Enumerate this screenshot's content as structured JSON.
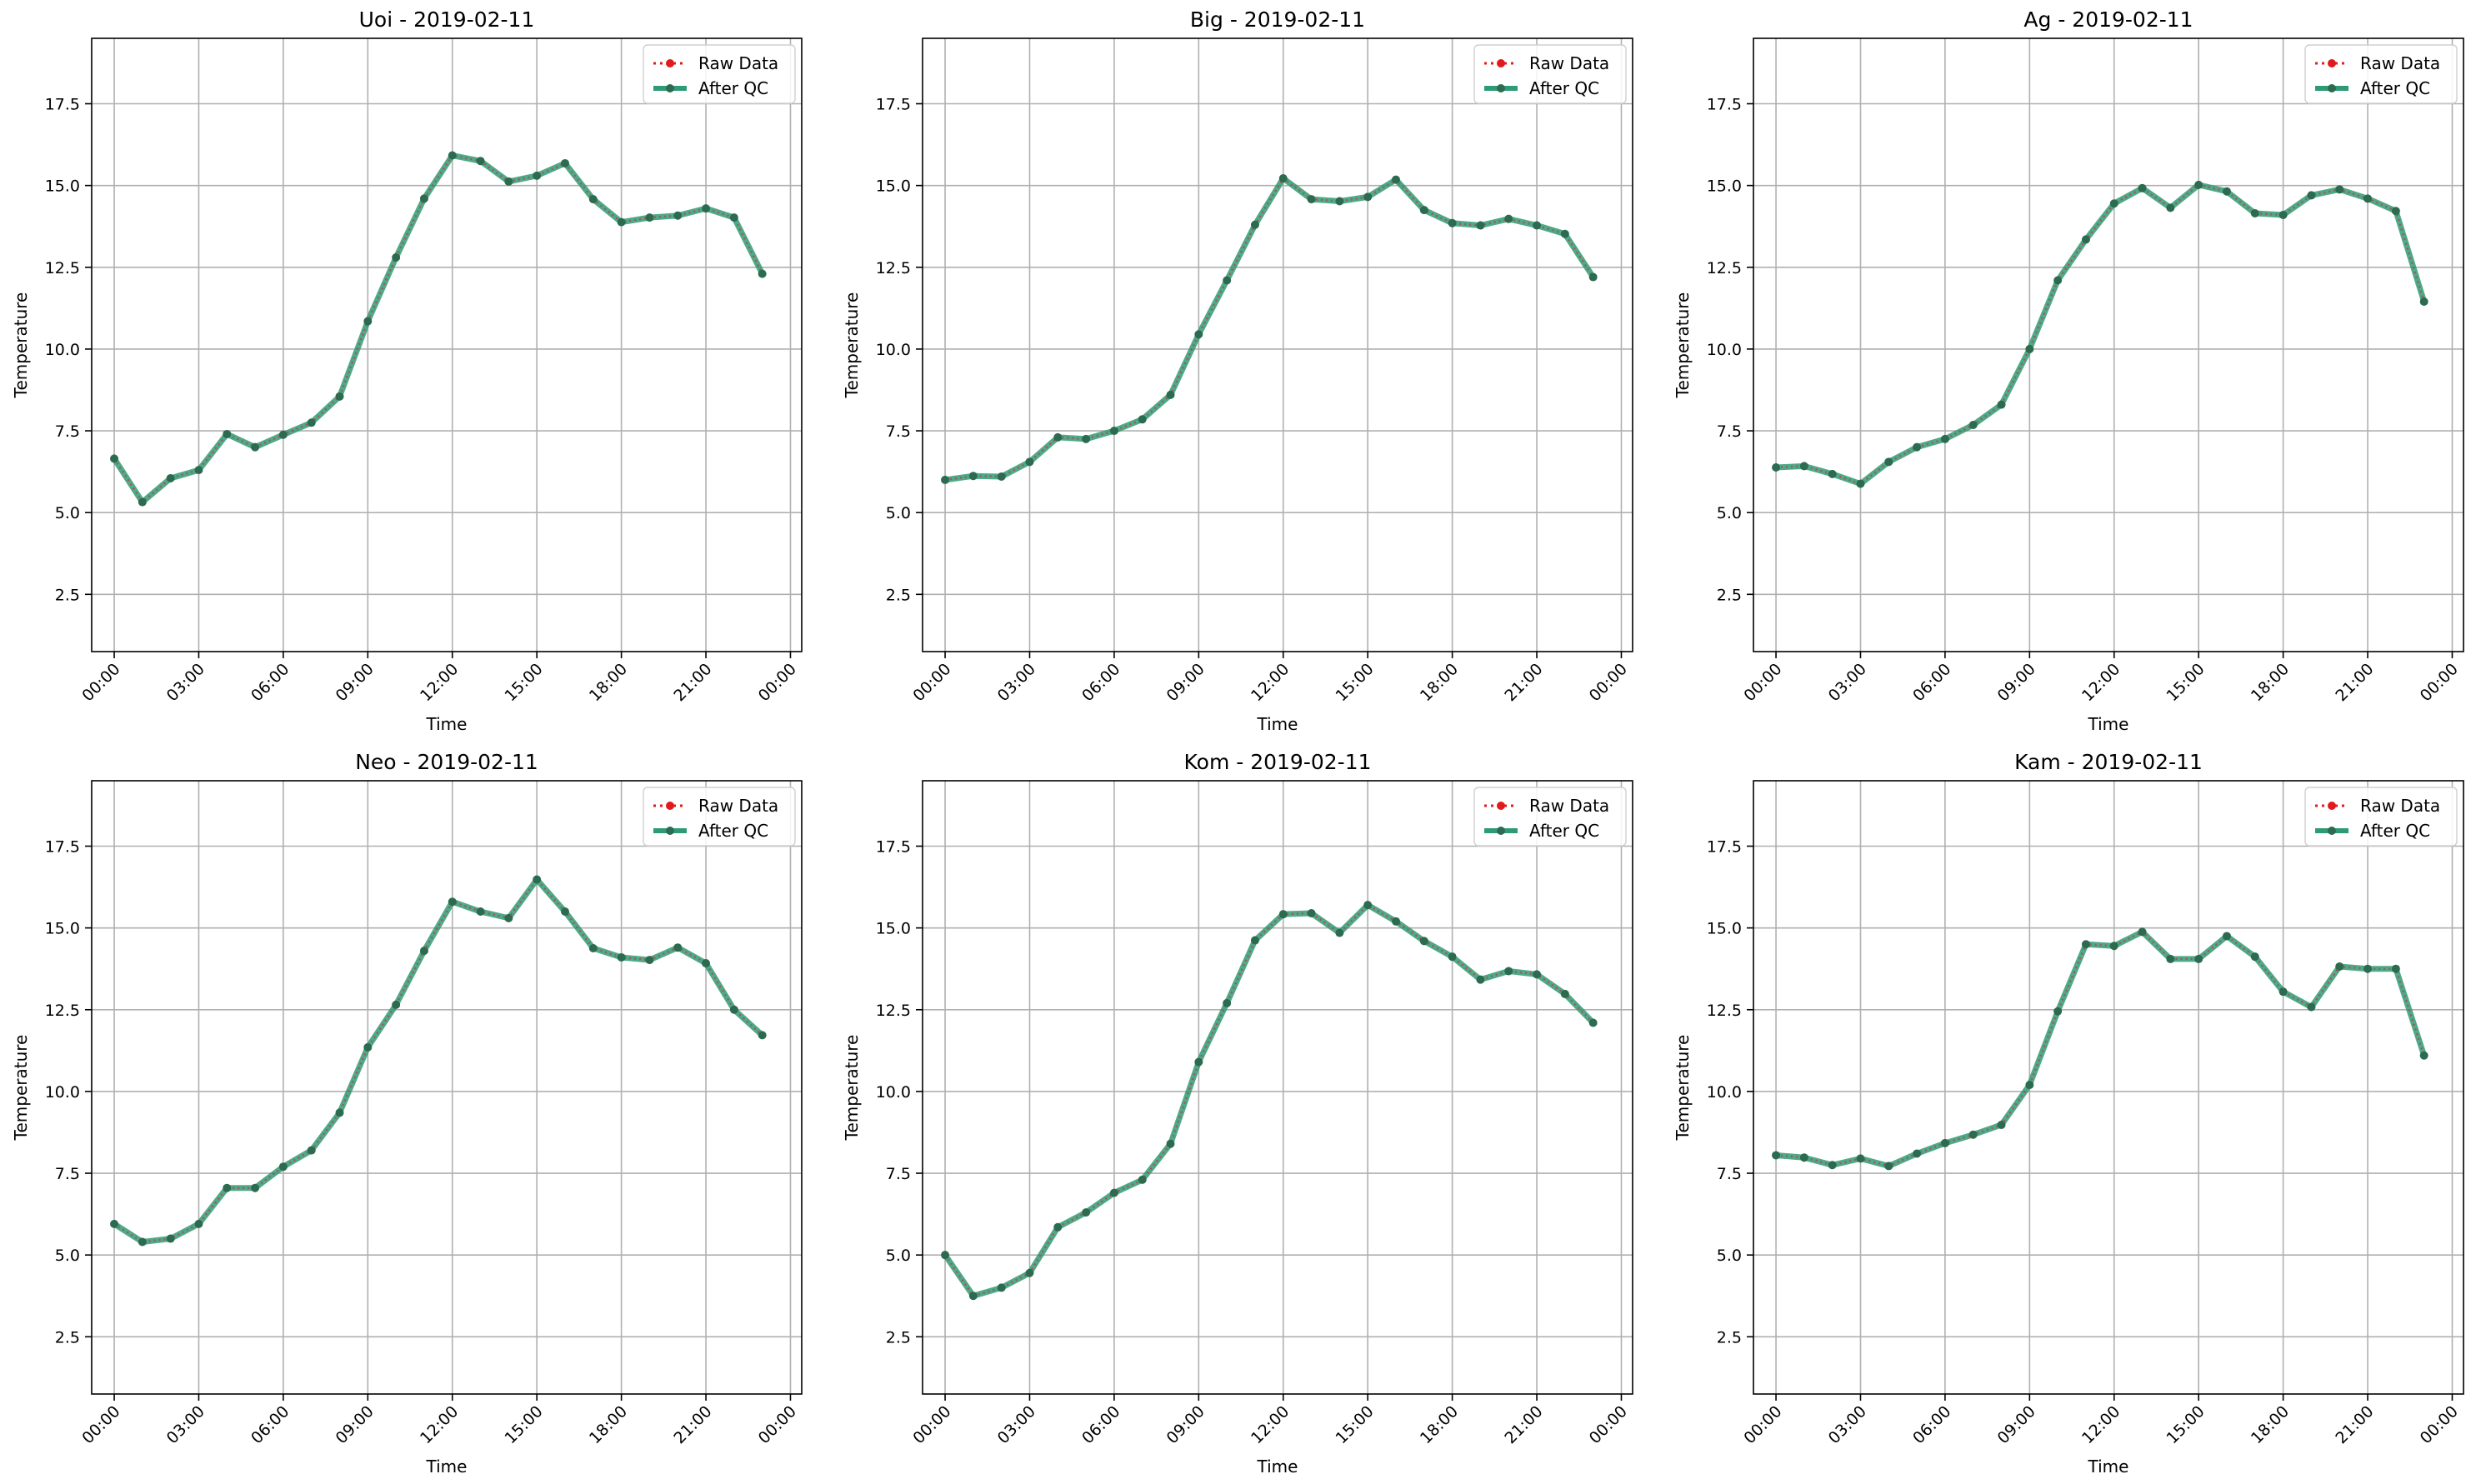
{
  "chart_data": [
    {
      "type": "line",
      "title": "Uoi - 2019-02-11",
      "xlabel": "Time",
      "ylabel": "Temperature",
      "x": [
        "00:00",
        "01:00",
        "02:00",
        "03:00",
        "04:00",
        "05:00",
        "06:00",
        "07:00",
        "08:00",
        "09:00",
        "10:00",
        "11:00",
        "12:00",
        "13:00",
        "14:00",
        "15:00",
        "16:00",
        "17:00",
        "18:00",
        "19:00",
        "20:00",
        "21:00",
        "22:00",
        "23:00"
      ],
      "series": [
        {
          "name": "Raw Data",
          "values": [
            6.65,
            5.32,
            6.05,
            6.3,
            7.4,
            7.0,
            7.38,
            7.75,
            8.55,
            10.85,
            12.8,
            14.6,
            15.92,
            15.75,
            15.12,
            15.3,
            15.68,
            14.58,
            13.88,
            14.02,
            14.08,
            14.3,
            14.02,
            12.3
          ]
        },
        {
          "name": "After QC",
          "values": [
            6.65,
            5.32,
            6.05,
            6.3,
            7.4,
            7.0,
            7.38,
            7.75,
            8.55,
            10.85,
            12.8,
            14.6,
            15.92,
            15.75,
            15.12,
            15.3,
            15.68,
            14.58,
            13.88,
            14.02,
            14.08,
            14.3,
            14.02,
            12.3
          ]
        }
      ],
      "ylim": [
        0.75,
        19.5
      ],
      "yticks": [
        2.5,
        5.0,
        7.5,
        10.0,
        12.5,
        15.0,
        17.5
      ],
      "xticks": [
        "00:00",
        "03:00",
        "06:00",
        "09:00",
        "12:00",
        "15:00",
        "18:00",
        "21:00",
        "00:00"
      ],
      "grid": true,
      "legend": "top-right"
    },
    {
      "type": "line",
      "title": "Big - 2019-02-11",
      "xlabel": "Time",
      "ylabel": "Temperature",
      "x": [
        "00:00",
        "01:00",
        "02:00",
        "03:00",
        "04:00",
        "05:00",
        "06:00",
        "07:00",
        "08:00",
        "09:00",
        "10:00",
        "11:00",
        "12:00",
        "13:00",
        "14:00",
        "15:00",
        "16:00",
        "17:00",
        "18:00",
        "19:00",
        "20:00",
        "21:00",
        "22:00",
        "23:00"
      ],
      "series": [
        {
          "name": "Raw Data",
          "values": [
            6.0,
            6.12,
            6.1,
            6.55,
            7.3,
            7.25,
            7.5,
            7.85,
            8.6,
            10.45,
            12.1,
            13.8,
            15.22,
            14.58,
            14.52,
            14.65,
            15.18,
            14.25,
            13.85,
            13.78,
            13.98,
            13.78,
            13.52,
            12.2
          ]
        },
        {
          "name": "After QC",
          "values": [
            6.0,
            6.12,
            6.1,
            6.55,
            7.3,
            7.25,
            7.5,
            7.85,
            8.6,
            10.45,
            12.1,
            13.8,
            15.22,
            14.58,
            14.52,
            14.65,
            15.18,
            14.25,
            13.85,
            13.78,
            13.98,
            13.78,
            13.52,
            12.2
          ]
        }
      ],
      "ylim": [
        0.75,
        19.5
      ],
      "yticks": [
        2.5,
        5.0,
        7.5,
        10.0,
        12.5,
        15.0,
        17.5
      ],
      "xticks": [
        "00:00",
        "03:00",
        "06:00",
        "09:00",
        "12:00",
        "15:00",
        "18:00",
        "21:00",
        "00:00"
      ],
      "grid": true,
      "legend": "top-right"
    },
    {
      "type": "line",
      "title": "Ag - 2019-02-11",
      "xlabel": "Time",
      "ylabel": "Temperature",
      "x": [
        "00:00",
        "01:00",
        "02:00",
        "03:00",
        "04:00",
        "05:00",
        "06:00",
        "07:00",
        "08:00",
        "09:00",
        "10:00",
        "11:00",
        "12:00",
        "13:00",
        "14:00",
        "15:00",
        "16:00",
        "17:00",
        "18:00",
        "19:00",
        "20:00",
        "21:00",
        "22:00",
        "23:00"
      ],
      "series": [
        {
          "name": "Raw Data",
          "values": [
            6.38,
            6.42,
            6.18,
            5.88,
            6.55,
            7.0,
            7.25,
            7.68,
            8.3,
            10.0,
            12.1,
            13.35,
            14.45,
            14.92,
            14.32,
            15.02,
            14.82,
            14.15,
            14.1,
            14.7,
            14.88,
            14.6,
            14.22,
            11.45
          ]
        },
        {
          "name": "After QC",
          "values": [
            6.38,
            6.42,
            6.18,
            5.88,
            6.55,
            7.0,
            7.25,
            7.68,
            8.3,
            10.0,
            12.1,
            13.35,
            14.45,
            14.92,
            14.32,
            15.02,
            14.82,
            14.15,
            14.1,
            14.7,
            14.88,
            14.6,
            14.22,
            11.45
          ]
        }
      ],
      "ylim": [
        0.75,
        19.5
      ],
      "yticks": [
        2.5,
        5.0,
        7.5,
        10.0,
        12.5,
        15.0,
        17.5
      ],
      "xticks": [
        "00:00",
        "03:00",
        "06:00",
        "09:00",
        "12:00",
        "15:00",
        "18:00",
        "21:00",
        "00:00"
      ],
      "grid": true,
      "legend": "top-right"
    },
    {
      "type": "line",
      "title": "Neo - 2019-02-11",
      "xlabel": "Time",
      "ylabel": "Temperature",
      "x": [
        "00:00",
        "01:00",
        "02:00",
        "03:00",
        "04:00",
        "05:00",
        "06:00",
        "07:00",
        "08:00",
        "09:00",
        "10:00",
        "11:00",
        "12:00",
        "13:00",
        "14:00",
        "15:00",
        "16:00",
        "17:00",
        "18:00",
        "19:00",
        "20:00",
        "21:00",
        "22:00",
        "23:00"
      ],
      "series": [
        {
          "name": "Raw Data",
          "values": [
            5.95,
            5.4,
            5.5,
            5.95,
            7.05,
            7.05,
            7.7,
            8.2,
            9.35,
            11.35,
            12.65,
            14.3,
            15.8,
            15.5,
            15.3,
            16.48,
            15.5,
            14.38,
            14.1,
            14.02,
            14.4,
            13.92,
            12.5,
            11.72
          ]
        },
        {
          "name": "After QC",
          "values": [
            5.95,
            5.4,
            5.5,
            5.95,
            7.05,
            7.05,
            7.7,
            8.2,
            9.35,
            11.35,
            12.65,
            14.3,
            15.8,
            15.5,
            15.3,
            16.48,
            15.5,
            14.38,
            14.1,
            14.02,
            14.4,
            13.92,
            12.5,
            11.72
          ]
        }
      ],
      "ylim": [
        0.75,
        19.5
      ],
      "yticks": [
        2.5,
        5.0,
        7.5,
        10.0,
        12.5,
        15.0,
        17.5
      ],
      "xticks": [
        "00:00",
        "03:00",
        "06:00",
        "09:00",
        "12:00",
        "15:00",
        "18:00",
        "21:00",
        "00:00"
      ],
      "grid": true,
      "legend": "top-right"
    },
    {
      "type": "line",
      "title": "Kom - 2019-02-11",
      "xlabel": "Time",
      "ylabel": "Temperature",
      "x": [
        "00:00",
        "01:00",
        "02:00",
        "03:00",
        "04:00",
        "05:00",
        "06:00",
        "07:00",
        "08:00",
        "09:00",
        "10:00",
        "11:00",
        "12:00",
        "13:00",
        "14:00",
        "15:00",
        "16:00",
        "17:00",
        "18:00",
        "19:00",
        "20:00",
        "21:00",
        "22:00",
        "23:00"
      ],
      "series": [
        {
          "name": "Raw Data",
          "values": [
            5.0,
            3.75,
            4.0,
            4.45,
            5.85,
            6.3,
            6.9,
            7.3,
            8.4,
            10.9,
            12.7,
            14.62,
            15.42,
            15.45,
            14.85,
            15.7,
            15.2,
            14.6,
            14.12,
            13.42,
            13.68,
            13.58,
            12.98,
            12.1
          ]
        },
        {
          "name": "After QC",
          "values": [
            5.0,
            3.75,
            4.0,
            4.45,
            5.85,
            6.3,
            6.9,
            7.3,
            8.4,
            10.9,
            12.7,
            14.62,
            15.42,
            15.45,
            14.85,
            15.7,
            15.2,
            14.6,
            14.12,
            13.42,
            13.68,
            13.58,
            12.98,
            12.1
          ]
        }
      ],
      "ylim": [
        0.75,
        19.5
      ],
      "yticks": [
        2.5,
        5.0,
        7.5,
        10.0,
        12.5,
        15.0,
        17.5
      ],
      "xticks": [
        "00:00",
        "03:00",
        "06:00",
        "09:00",
        "12:00",
        "15:00",
        "18:00",
        "21:00",
        "00:00"
      ],
      "grid": true,
      "legend": "top-right"
    },
    {
      "type": "line",
      "title": "Kam - 2019-02-11",
      "xlabel": "Time",
      "ylabel": "Temperature",
      "x": [
        "00:00",
        "01:00",
        "02:00",
        "03:00",
        "04:00",
        "05:00",
        "06:00",
        "07:00",
        "08:00",
        "09:00",
        "10:00",
        "11:00",
        "12:00",
        "13:00",
        "14:00",
        "15:00",
        "16:00",
        "17:00",
        "18:00",
        "19:00",
        "20:00",
        "21:00",
        "22:00",
        "23:00"
      ],
      "series": [
        {
          "name": "Raw Data",
          "values": [
            8.05,
            7.98,
            7.75,
            7.95,
            7.72,
            8.1,
            8.42,
            8.68,
            8.98,
            10.2,
            12.45,
            14.5,
            14.45,
            14.88,
            14.05,
            14.05,
            14.75,
            14.12,
            13.05,
            12.58,
            13.82,
            13.75,
            13.75,
            11.1
          ]
        },
        {
          "name": "After QC",
          "values": [
            8.05,
            7.98,
            7.75,
            7.95,
            7.72,
            8.1,
            8.42,
            8.68,
            8.98,
            10.2,
            12.45,
            14.5,
            14.45,
            14.88,
            14.05,
            14.05,
            14.75,
            14.12,
            13.05,
            12.58,
            13.82,
            13.75,
            13.75,
            11.1
          ]
        }
      ],
      "ylim": [
        0.75,
        19.5
      ],
      "yticks": [
        2.5,
        5.0,
        7.5,
        10.0,
        12.5,
        15.0,
        17.5
      ],
      "xticks": [
        "00:00",
        "03:00",
        "06:00",
        "09:00",
        "12:00",
        "15:00",
        "18:00",
        "21:00",
        "00:00"
      ],
      "grid": true,
      "legend": "top-right"
    }
  ],
  "colors": {
    "raw": "#e31a1c",
    "qc_line": "#2f9b76",
    "qc_marker": "#2d6b50",
    "grid": "#b0b0b0",
    "axis": "#000000"
  }
}
